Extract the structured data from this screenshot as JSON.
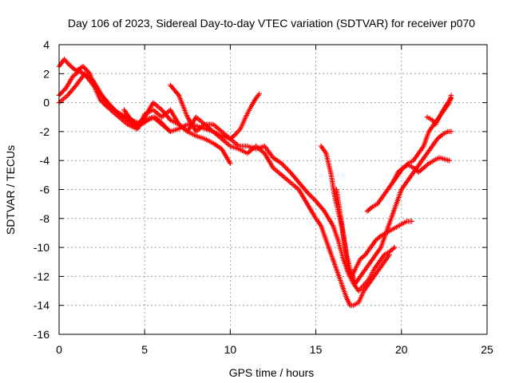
{
  "chart_data": {
    "type": "scatter",
    "title": "Day 106 of 2023, Sidereal Day-to-day VTEC variation (SDTVAR) for receiver p070",
    "xlabel": "GPS time / hours",
    "ylabel": "SDTVAR / TECUs",
    "xlim": [
      0,
      25
    ],
    "ylim": [
      -16,
      4
    ],
    "xticks": [
      "0",
      "5",
      "10",
      "15",
      "20",
      "25"
    ],
    "yticks": [
      "4",
      "2",
      "0",
      "-2",
      "-4",
      "-6",
      "-8",
      "-10",
      "-12",
      "-14",
      "-16"
    ],
    "grid": true,
    "marker": "+",
    "color": "#ff0000",
    "series": [
      {
        "x": [
          0.0,
          0.3,
          0.6,
          1.0,
          1.4,
          1.8,
          2.1,
          2.4,
          2.8,
          3.2,
          3.6,
          4.0,
          4.4,
          4.8,
          5.2,
          5.6,
          6.0,
          6.3,
          6.5
        ],
        "y": [
          2.5,
          3.0,
          2.6,
          2.2,
          2.5,
          2.0,
          1.0,
          0.2,
          -0.3,
          -0.5,
          -0.8,
          -1.0,
          -1.3,
          -1.5,
          -1.2,
          -1.0,
          -1.4,
          -1.8,
          -2.0
        ]
      },
      {
        "x": [
          0.0,
          0.5,
          1.0,
          1.5,
          2.0,
          2.5,
          3.0,
          3.5,
          4.0,
          4.5,
          5.0,
          5.5,
          6.0,
          6.5,
          7.0,
          7.5,
          8.0,
          8.5,
          9.0,
          9.5,
          10.0,
          10.3,
          10.6,
          10.9,
          11.2,
          11.5,
          11.7
        ],
        "y": [
          0.0,
          0.5,
          1.2,
          2.0,
          1.5,
          0.5,
          -0.5,
          -1.0,
          -1.5,
          -1.8,
          -1.2,
          -1.0,
          -1.5,
          -2.0,
          -1.8,
          -1.5,
          -1.6,
          -1.8,
          -2.0,
          -2.3,
          -2.5,
          -2.2,
          -1.8,
          -1.0,
          -0.3,
          0.3,
          0.6
        ]
      },
      {
        "x": [
          0.0,
          0.4,
          0.8,
          1.2,
          1.6,
          2.0,
          2.5,
          3.0,
          3.5,
          4.0,
          4.5,
          5.0,
          5.5,
          6.0,
          6.5,
          7.0,
          7.5,
          8.0,
          8.5,
          9.0,
          9.5,
          10.0
        ],
        "y": [
          0.5,
          1.0,
          1.8,
          2.2,
          1.8,
          1.2,
          0.5,
          -0.2,
          -0.8,
          -1.2,
          -1.6,
          -1.0,
          0.0,
          -0.5,
          -1.2,
          -1.5,
          -2.0,
          -2.3,
          -2.5,
          -2.8,
          -3.2,
          -4.2
        ]
      },
      {
        "x": [
          3.8,
          4.2,
          4.6,
          5.0,
          5.5,
          6.0,
          6.5,
          7.0,
          7.5,
          8.0,
          8.5,
          9.0,
          9.5,
          10.0,
          10.5,
          11.0,
          11.5,
          12.0,
          12.5,
          13.0,
          13.5,
          14.0,
          14.5,
          15.0,
          15.3,
          15.6,
          15.9,
          16.2,
          16.5,
          16.8,
          17.0,
          17.2,
          17.5,
          17.8,
          18.1,
          18.4,
          18.7,
          19.0,
          19.3
        ],
        "y": [
          -0.5,
          -1.2,
          -1.8,
          -0.8,
          -0.5,
          -1.0,
          -0.5,
          -1.5,
          -2.0,
          -1.0,
          -1.5,
          -2.0,
          -2.5,
          -3.0,
          -3.2,
          -3.5,
          -3.0,
          -3.5,
          -4.5,
          -5.0,
          -5.5,
          -6.0,
          -7.0,
          -8.0,
          -8.5,
          -9.5,
          -10.5,
          -11.5,
          -12.5,
          -13.5,
          -14.0,
          -14.0,
          -13.8,
          -13.0,
          -12.5,
          -12.0,
          -11.5,
          -11.0,
          -10.5
        ]
      },
      {
        "x": [
          6.5,
          7.0,
          7.5,
          8.0,
          8.5,
          9.0,
          9.5,
          10.0,
          10.5,
          11.0,
          11.5,
          12.0,
          12.5,
          13.0,
          13.5,
          14.0,
          14.5,
          15.0,
          15.5,
          16.0,
          16.3,
          16.6,
          16.9,
          17.2,
          17.5,
          17.8,
          18.1,
          18.4,
          18.7,
          19.0,
          19.3,
          19.6
        ],
        "y": [
          1.2,
          0.5,
          -1.0,
          -2.0,
          -1.5,
          -1.5,
          -2.0,
          -2.5,
          -3.0,
          -3.0,
          -3.2,
          -3.0,
          -3.8,
          -4.2,
          -4.8,
          -5.5,
          -6.2,
          -6.8,
          -7.5,
          -8.5,
          -9.5,
          -10.8,
          -11.8,
          -12.5,
          -13.0,
          -12.6,
          -12.2,
          -11.5,
          -11.0,
          -10.5,
          -10.3,
          -10.0
        ]
      },
      {
        "x": [
          15.3,
          15.6,
          15.9,
          16.1,
          16.3,
          16.5,
          16.7,
          16.9,
          17.1,
          17.3,
          17.6,
          17.9,
          18.2,
          18.5,
          18.8,
          19.1,
          19.4,
          19.7,
          20.0,
          20.3,
          20.6
        ],
        "y": [
          -3.0,
          -3.5,
          -5.0,
          -6.5,
          -7.5,
          -8.5,
          -10.0,
          -11.5,
          -12.0,
          -11.5,
          -10.8,
          -10.5,
          -10.0,
          -9.5,
          -9.2,
          -9.0,
          -8.8,
          -8.6,
          -8.4,
          -8.2,
          -8.2
        ]
      },
      {
        "x": [
          16.2,
          16.4,
          16.6,
          16.8,
          17.0,
          17.3,
          17.6,
          17.9,
          18.2,
          18.5,
          18.8,
          19.1,
          19.4,
          19.7,
          20.0,
          20.3,
          20.6,
          20.9,
          21.2,
          21.5,
          21.8,
          22.1,
          22.4,
          22.7,
          22.9
        ],
        "y": [
          -6.0,
          -7.5,
          -9.0,
          -10.5,
          -11.5,
          -12.5,
          -12.0,
          -11.5,
          -11.0,
          -10.5,
          -10.0,
          -9.0,
          -8.0,
          -7.0,
          -6.0,
          -5.5,
          -5.0,
          -4.5,
          -4.0,
          -3.5,
          -3.0,
          -2.5,
          -2.2,
          -2.0,
          -2.0
        ]
      },
      {
        "x": [
          18.0,
          18.3,
          18.6,
          18.9,
          19.2,
          19.5,
          19.8,
          20.1,
          20.4,
          20.7,
          21.0,
          21.3,
          21.6,
          21.9,
          22.2,
          22.5,
          22.8
        ],
        "y": [
          -7.5,
          -7.2,
          -7.0,
          -6.5,
          -6.0,
          -5.5,
          -4.8,
          -4.5,
          -4.3,
          -4.5,
          -4.8,
          -4.5,
          -4.2,
          -4.0,
          -3.8,
          -3.9,
          -4.0
        ]
      },
      {
        "x": [
          19.5,
          19.8,
          20.1,
          20.4,
          20.7,
          21.0,
          21.3,
          21.6,
          21.9,
          22.2,
          22.5,
          22.8,
          22.9
        ],
        "y": [
          -5.5,
          -5.0,
          -4.5,
          -4.2,
          -4.0,
          -3.5,
          -3.0,
          -2.0,
          -1.5,
          -1.0,
          -0.5,
          0.0,
          0.5
        ]
      },
      {
        "x": [
          21.5,
          21.8,
          22.0,
          22.3,
          22.6,
          22.9
        ],
        "y": [
          -1.0,
          -1.2,
          -1.5,
          -0.8,
          -0.2,
          0.3
        ]
      }
    ]
  }
}
